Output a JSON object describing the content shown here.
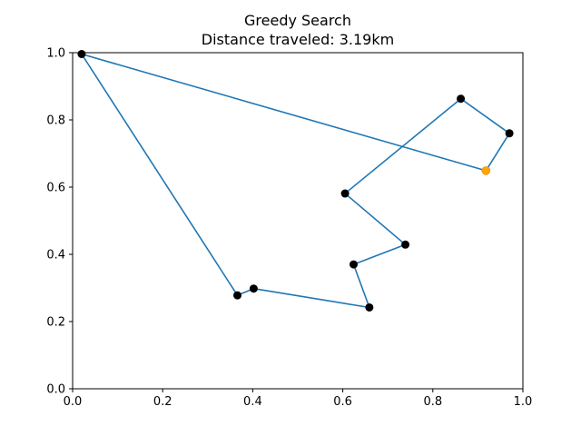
{
  "chart_data": {
    "type": "line",
    "title": "Greedy Search",
    "subtitle": "Distance traveled: 3.19km",
    "xlabel": "",
    "ylabel": "",
    "xlim": [
      0.0,
      1.0
    ],
    "ylim": [
      0.0,
      1.0
    ],
    "x_ticks": [
      "0.0",
      "0.2",
      "0.4",
      "0.6",
      "0.8",
      "1.0"
    ],
    "y_ticks": [
      "0.0",
      "0.2",
      "0.4",
      "0.6",
      "0.8",
      "1.0"
    ],
    "grid": false,
    "legend": "none",
    "line_color": "#1f77b4",
    "point_color": "#000000",
    "start_color": "#ffa500",
    "route": [
      {
        "x": 0.918,
        "y": 0.649
      },
      {
        "x": 0.97,
        "y": 0.76
      },
      {
        "x": 0.862,
        "y": 0.863
      },
      {
        "x": 0.605,
        "y": 0.581
      },
      {
        "x": 0.739,
        "y": 0.429
      },
      {
        "x": 0.624,
        "y": 0.37
      },
      {
        "x": 0.659,
        "y": 0.242
      },
      {
        "x": 0.402,
        "y": 0.298
      },
      {
        "x": 0.366,
        "y": 0.278
      },
      {
        "x": 0.02,
        "y": 0.996
      },
      {
        "x": 0.918,
        "y": 0.649
      }
    ],
    "points": [
      {
        "x": 0.02,
        "y": 0.996
      },
      {
        "x": 0.862,
        "y": 0.863
      },
      {
        "x": 0.97,
        "y": 0.76
      },
      {
        "x": 0.605,
        "y": 0.581
      },
      {
        "x": 0.739,
        "y": 0.429
      },
      {
        "x": 0.624,
        "y": 0.37
      },
      {
        "x": 0.402,
        "y": 0.298
      },
      {
        "x": 0.366,
        "y": 0.278
      },
      {
        "x": 0.659,
        "y": 0.242
      }
    ],
    "start_point": {
      "x": 0.918,
      "y": 0.649
    }
  }
}
